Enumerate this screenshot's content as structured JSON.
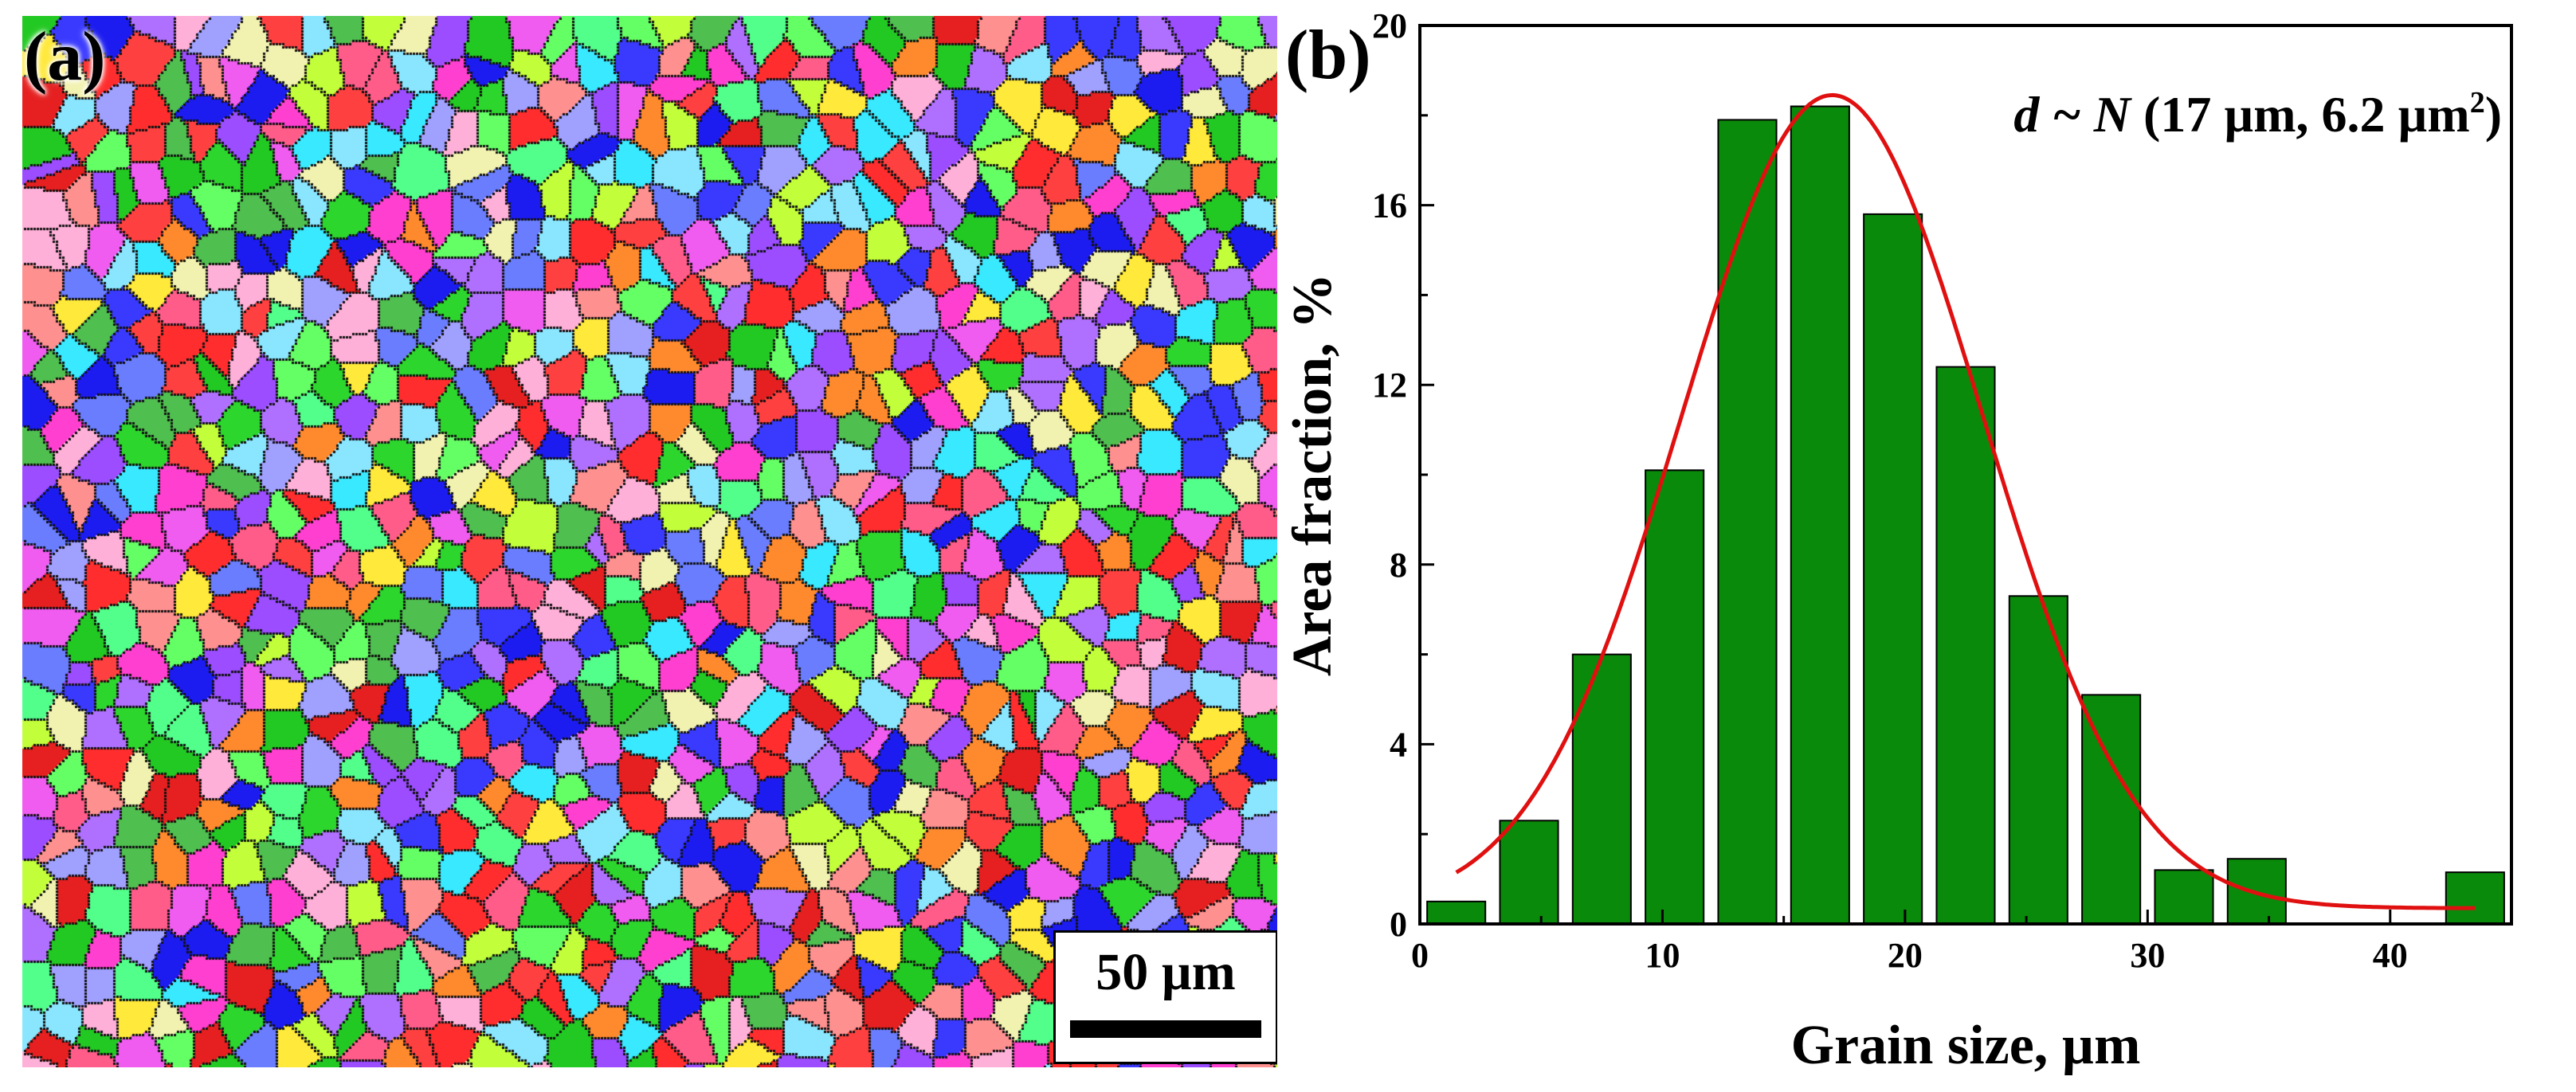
{
  "panel_a": {
    "label": "(a)",
    "scale_bar_label": "50 µm"
  },
  "panel_b": {
    "label": "(b)"
  },
  "chart_data": {
    "type": "bar",
    "title": "",
    "xlabel": "Grain size, µm",
    "ylabel": "Area fraction, %",
    "xlim": [
      0,
      45
    ],
    "ylim": [
      0,
      20
    ],
    "x_ticks": [
      0,
      10,
      20,
      30,
      40
    ],
    "y_ticks": [
      0,
      4,
      8,
      12,
      16,
      20
    ],
    "bar_width": 2.4,
    "x": [
      1.5,
      4.5,
      7.5,
      10.5,
      13.5,
      16.5,
      19.5,
      22.5,
      25.5,
      28.5,
      31.5,
      34.5,
      43.5
    ],
    "values": [
      0.5,
      2.3,
      6.0,
      10.1,
      17.9,
      18.2,
      15.8,
      12.4,
      7.3,
      5.1,
      1.2,
      1.45,
      1.15
    ],
    "bar_color": "#0a8a0a",
    "fit": {
      "name": "normal fit",
      "color": "#e01010",
      "mean": 17,
      "sigma": 6.2,
      "peak": 18.45,
      "baseline": 0.35,
      "x_start": 1.5,
      "x_end": 43.5
    },
    "annotation": {
      "italic_part": "d ~ N",
      "text": " (17 µm, 6.2 µm",
      "superscript": "2",
      "close": ")"
    }
  }
}
